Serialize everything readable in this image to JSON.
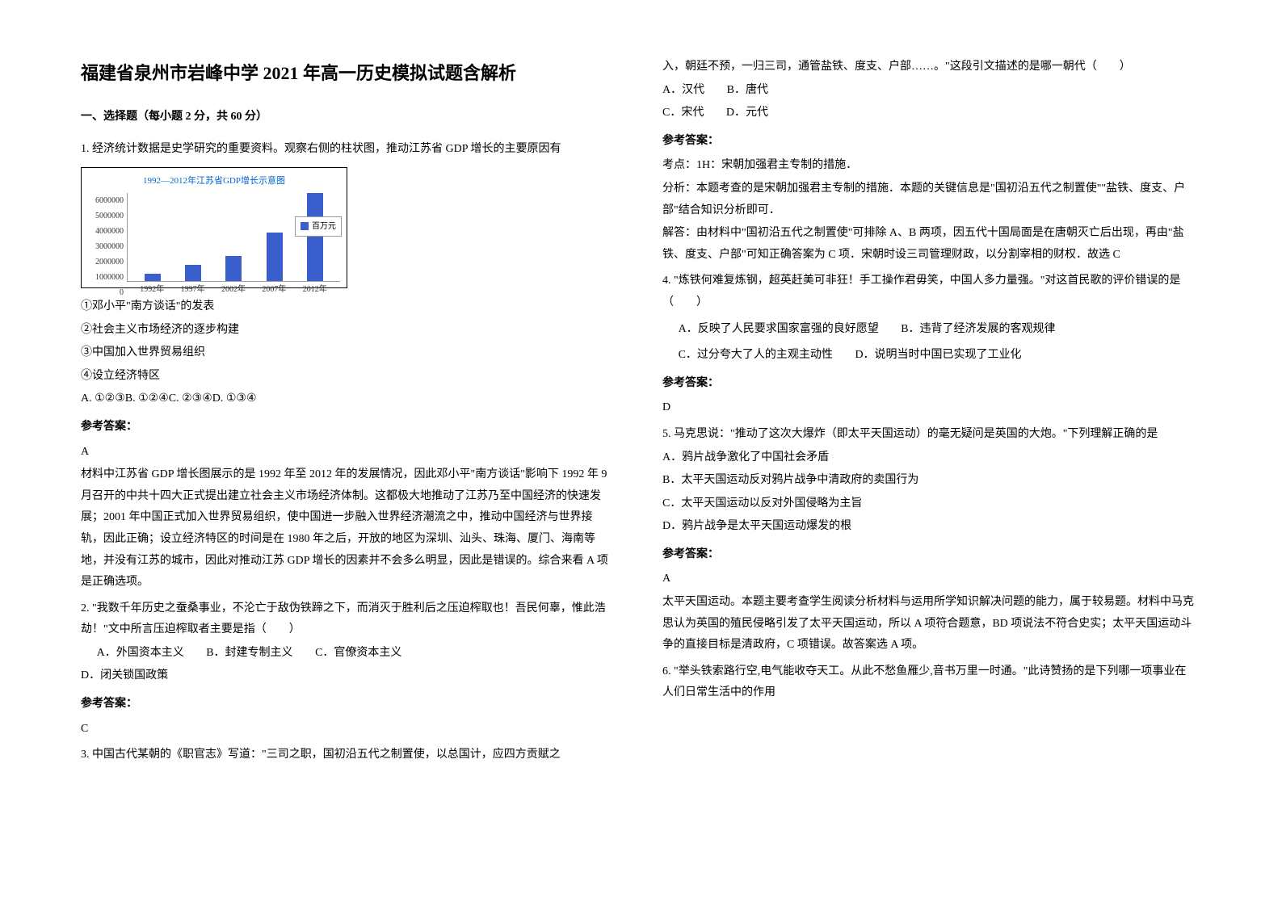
{
  "title": "福建省泉州市岩峰中学 2021 年高一历史模拟试题含解析",
  "section_heading": "一、选择题（每小题 2 分，共 60 分）",
  "chart": {
    "type": "bar",
    "title": "1992—2012年江苏省GDP增长示意图",
    "ylabels": [
      "6000000",
      "5000000",
      "4000000",
      "3000000",
      "2000000",
      "1000000",
      "0"
    ],
    "xlabels": [
      "1992年",
      "1997年",
      "2002年",
      "2007年",
      "2012年"
    ],
    "bars_pct": [
      8,
      18,
      28,
      55,
      100
    ],
    "bar_color": "#3a5fcd",
    "legend_label": "百万元",
    "background": "#ffffff",
    "grid_color": "#cccccc"
  },
  "q1": {
    "stem": "1. 经济统计数据是史学研究的重要资料。观察右侧的柱状图，推动江苏省 GDP 增长的主要原因有",
    "opt1": "①邓小平\"南方谈话\"的发表",
    "opt2": "②社会主义市场经济的逐步构建",
    "opt3": "③中国加入世界贸易组织",
    "opt4": "④设立经济特区",
    "choices": "A. ①②③B. ①②④C. ②③④D. ①③④",
    "ans_label": "参考答案：",
    "ans": "A",
    "expl1": "材料中江苏省 GDP 增长图展示的是 1992 年至 2012 年的发展情况，因此邓小平\"南方谈话\"影响下 1992 年 9 月召开的中共十四大正式提出建立社会主义市场经济体制。这都极大地推动了江苏乃至中国经济的快速发展；2001 年中国正式加入世界贸易组织，使中国进一步融入世界经济潮流之中，推动中国经济与世界接轨，因此正确；设立经济特区的时间是在 1980 年之后，开放的地区为深圳、汕头、珠海、厦门、海南等地，并没有江苏的城市，因此对推动江苏 GDP 增长的因素并不会多么明显，因此是错误的。综合来看 A 项是正确选项。"
  },
  "q2": {
    "stem": "2. \"我数千年历史之蚕桑事业，不沦亡于敌伪铁蹄之下，而消灭于胜利后之压迫榨取也！吾民何辜，惟此浩劫！\"文中所言压迫榨取者主要是指（　　）",
    "a": "A．外国资本主义",
    "b": "B．封建专制主义",
    "c": "C．官僚资本主义",
    "d": "D．闭关锁国政策",
    "ans_label": "参考答案：",
    "ans": "C"
  },
  "q3": {
    "stem1": "3. 中国古代某朝的《职官志》写道：\"三司之职，国初沿五代之制置使，以总国计，应四方贡赋之",
    "stem2": "入，朝廷不预，一归三司，通管盐铁、度支、户部……。\"这段引文描述的是哪一朝代（　　）",
    "a": "A．汉代",
    "b": "B．唐代",
    "c": "C．宋代",
    "d": "D．元代",
    "ans_label": "参考答案：",
    "l1": "考点：1H：宋朝加强君主专制的措施．",
    "l2": "分析：本题考查的是宋朝加强君主专制的措施．本题的关键信息是\"国初沿五代之制置使\"\"盐铁、度支、户部\"结合知识分析即可．",
    "l3": "解答：由材料中\"国初沿五代之制置使\"可排除 A、B 两项，因五代十国局面是在唐朝灭亡后出现，再由\"盐铁、度支、户部\"可知正确答案为 C 项．宋朝时设三司管理财政，以分割宰相的财权．故选 C"
  },
  "q4": {
    "stem": "4. \"炼铁何难复炼钢，超英赶美可非狂！手工操作君毋笑，中国人多力量强。\"对这首民歌的评价错误的是（　　）",
    "a": "A．反映了人民要求国家富强的良好愿望",
    "b": "B．违背了经济发展的客观规律",
    "c": "C．过分夸大了人的主观主动性",
    "d": "D．说明当时中国已实现了工业化",
    "ans_label": "参考答案：",
    "ans": "D"
  },
  "q5": {
    "stem": "5. 马克思说：\"推动了这次大爆炸（即太平天国运动）的毫无疑问是英国的大炮。\"下列理解正确的是",
    "a": "A．鸦片战争激化了中国社会矛盾",
    "b": "B．太平天国运动反对鸦片战争中清政府的卖国行为",
    "c": "C．太平天国运动以反对外国侵略为主旨",
    "d": "D．鸦片战争是太平天国运动爆发的根",
    "ans_label": "参考答案：",
    "ans": "A",
    "expl": "太平天国运动。本题主要考查学生阅读分析材料与运用所学知识解决问题的能力，属于较易题。材料中马克思认为英国的殖民侵略引发了太平天国运动，所以 A 项符合题意，BD 项说法不符合史实；太平天国运动斗争的直接目标是清政府，C 项错误。故答案选 A 项。"
  },
  "q6": {
    "stem": "6. \"举头铁索路行空,电气能收夺天工。从此不愁鱼雁少,音书万里一时通。\"此诗赞扬的是下列哪一项事业在人们日常生活中的作用"
  }
}
